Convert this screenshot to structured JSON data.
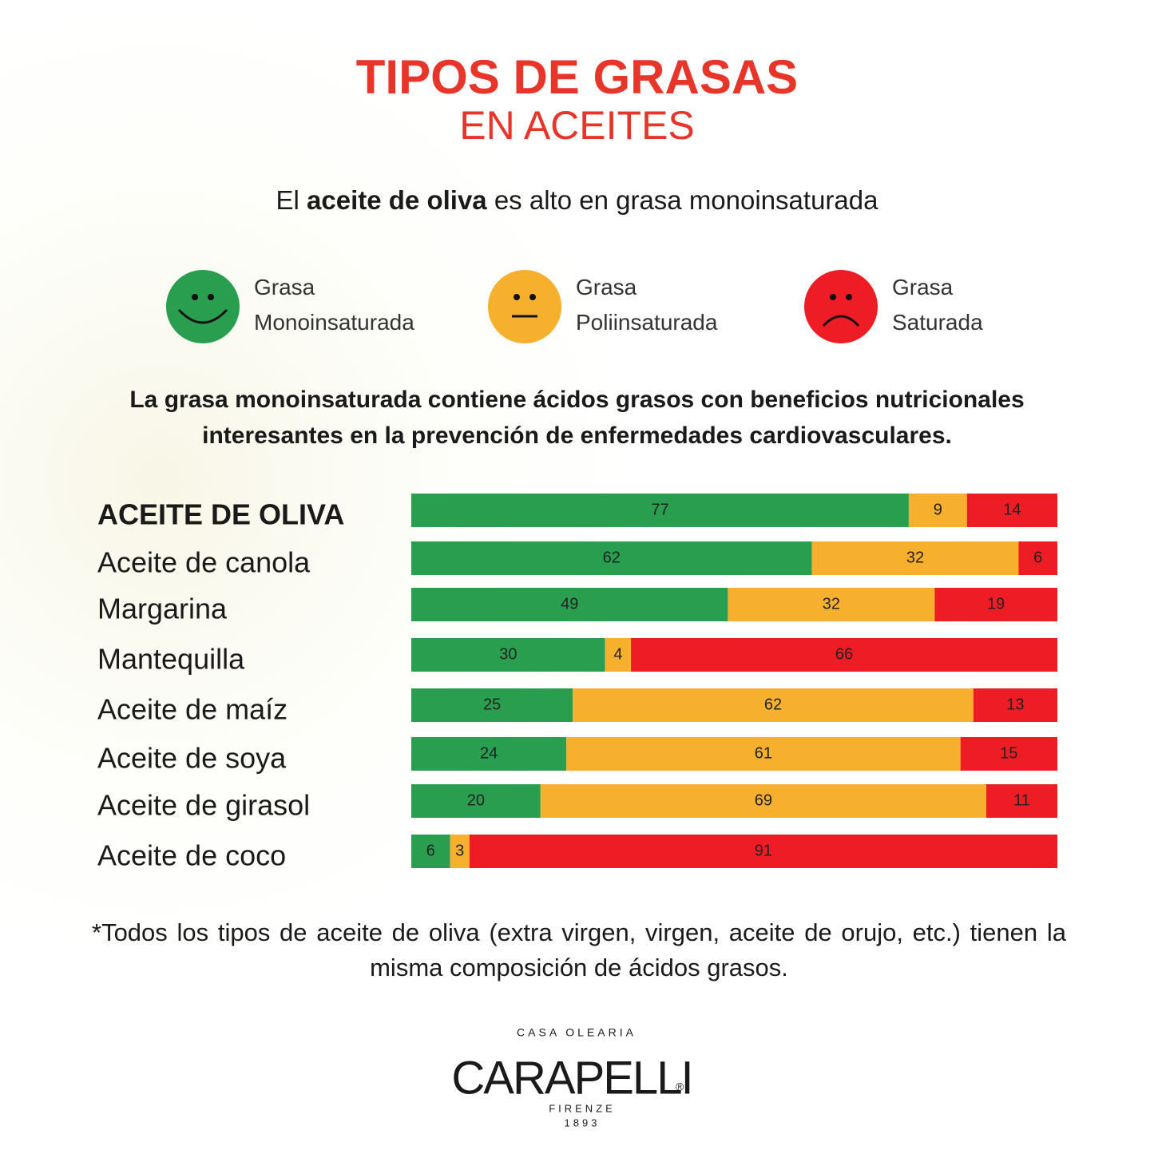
{
  "header": {
    "title": "TIPOS DE GRASAS",
    "subtitle": "EN ACEITES",
    "statement": [
      "El",
      "aceite de oliva",
      "es alto en grasa monoinsaturada"
    ],
    "note": "La grasa monoinsaturada contiene ácidos grasos con beneficios nutricionales interesantes en la prevención de enfermedades cardiovasculares."
  },
  "chart_data": {
    "type": "stacked-bar-horizontal",
    "categories": [
      "ACEITE DE OLIVA",
      "Aceite de canola",
      "Margarina",
      "Mantequilla",
      "Aceite de maíz",
      "Aceite de soya",
      "Aceite de girasol",
      "Aceite de coco"
    ],
    "series": [
      {
        "name": "Grasa Monoinsaturada",
        "color": "#2a9e4f",
        "values": [
          77,
          62,
          49,
          30,
          25,
          24,
          20,
          6
        ]
      },
      {
        "name": "Grasa Poliinsaturada",
        "color": "#f7b02d",
        "values": [
          9,
          32,
          32,
          4,
          62,
          61,
          69,
          3
        ]
      },
      {
        "name": "Grasa Saturada",
        "color": "#ee1c25",
        "values": [
          14,
          6,
          19,
          66,
          13,
          15,
          11,
          91
        ]
      }
    ]
  },
  "footnote": "*Todos los tipos de aceite de oliva (extra virgen, virgen, aceite de orujo, etc.) tienen la misma composición de ácidos grasos.",
  "logo": {
    "top": "CASA OLEARIA",
    "name": "CARAPELLI",
    "mark": "®",
    "city": "FIRENZE",
    "year": "1893"
  }
}
